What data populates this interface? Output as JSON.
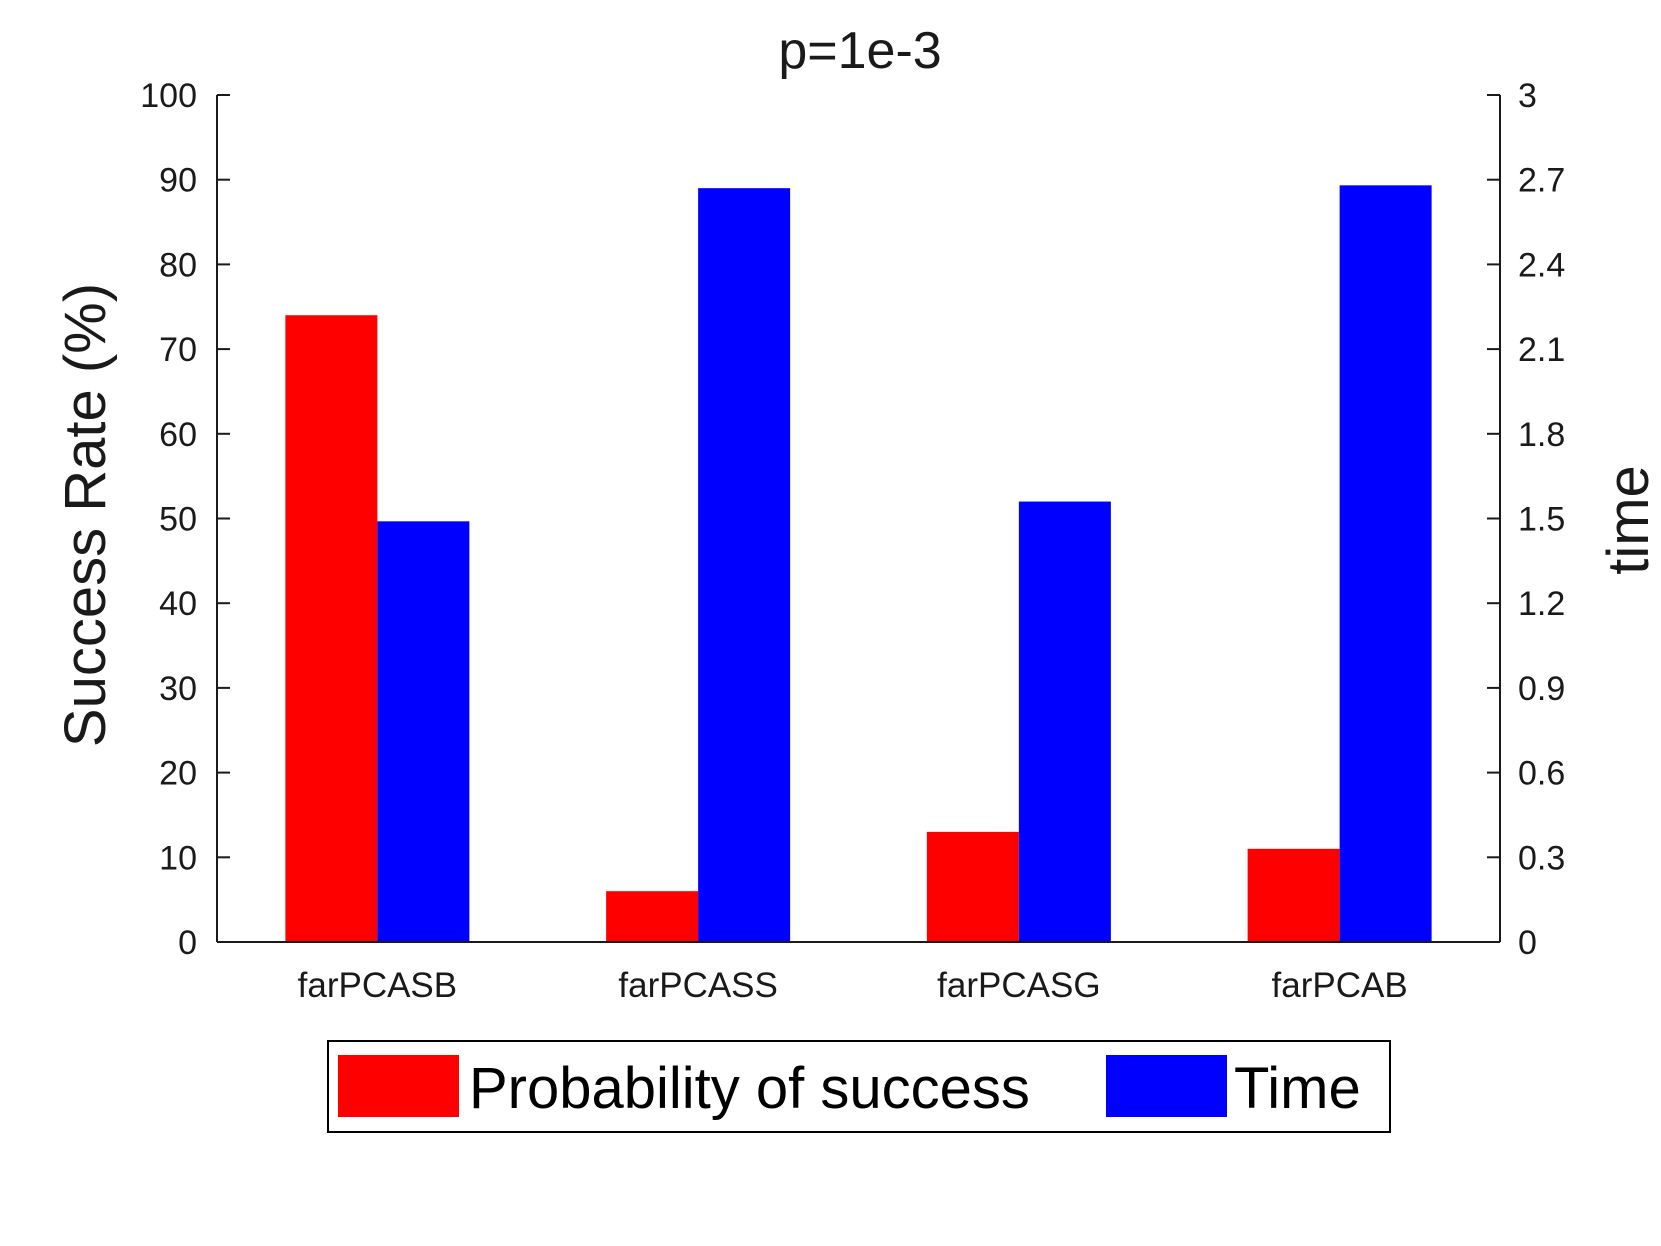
{
  "chart_data": {
    "type": "bar",
    "title": "p=1e-3",
    "xlabel": "",
    "ylabel": "Success Rate (%)",
    "ylabel_right": "time",
    "categories": [
      "farPCASB",
      "farPCASS",
      "farPCASG",
      "farPCAB"
    ],
    "ylim": [
      0,
      100
    ],
    "yticks": [
      "0",
      "10",
      "20",
      "30",
      "40",
      "50",
      "60",
      "70",
      "80",
      "90",
      "100"
    ],
    "ylim_right": [
      0,
      3
    ],
    "yticks_right": [
      "0",
      "0.3",
      "0.6",
      "0.9",
      "1.2",
      "1.5",
      "1.8",
      "2.1",
      "2.4",
      "2.7",
      "3"
    ],
    "series": [
      {
        "name": "Probability of success",
        "axis": "left",
        "color": "#ff0000",
        "values": [
          74,
          6,
          13,
          11
        ]
      },
      {
        "name": "Time",
        "axis": "right",
        "color": "#0000ff",
        "values": [
          1.49,
          2.67,
          1.56,
          2.68
        ]
      }
    ],
    "legend_position": "bottom",
    "grid": false
  }
}
